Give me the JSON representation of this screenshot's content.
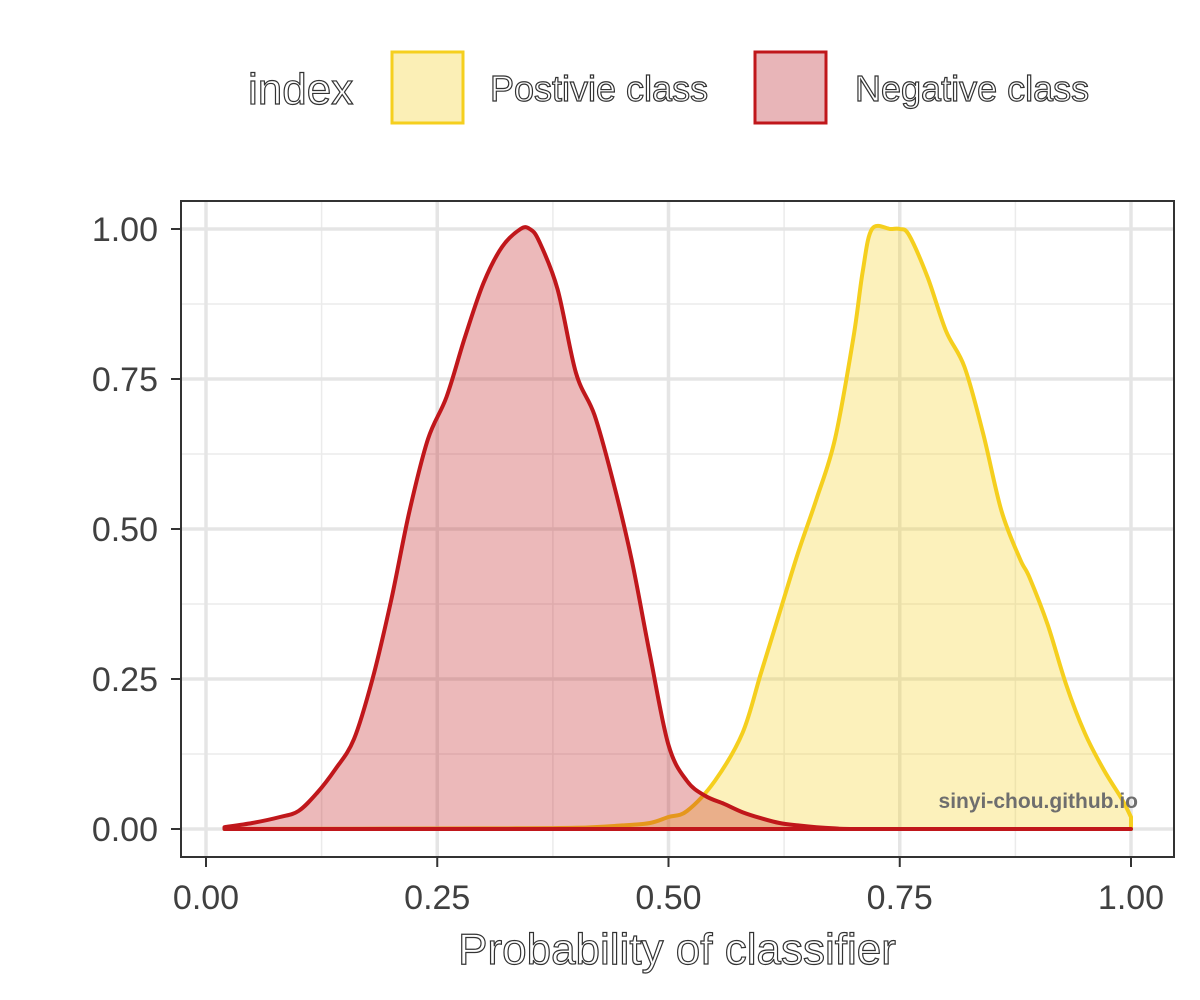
{
  "legend": {
    "title": "index",
    "items": [
      {
        "label": "Postivie class",
        "fill": "#fbefb6",
        "stroke": "#f5cf1e"
      },
      {
        "label": "Negative class",
        "fill": "#e8b5b8",
        "stroke": "#c0171b"
      }
    ]
  },
  "watermark": "sinyi-chou.github.io",
  "chart_data": {
    "type": "area",
    "xlabel": "Probability of classifier",
    "ylabel": "",
    "xlim": [
      0.0,
      1.0
    ],
    "ylim": [
      0.0,
      1.0
    ],
    "x_ticks": [
      "0.00",
      "0.25",
      "0.50",
      "0.75",
      "1.00"
    ],
    "y_ticks": [
      "0.00",
      "0.25",
      "0.50",
      "0.75",
      "1.00"
    ],
    "grid": true,
    "legend_position": "top",
    "series": [
      {
        "name": "Postivie class",
        "fill": "#fbefb6",
        "stroke": "#f5cf1e",
        "points": [
          [
            0.02,
            0.0
          ],
          [
            0.3,
            0.001
          ],
          [
            0.4,
            0.002
          ],
          [
            0.45,
            0.006
          ],
          [
            0.48,
            0.01
          ],
          [
            0.5,
            0.02
          ],
          [
            0.52,
            0.03
          ],
          [
            0.55,
            0.08
          ],
          [
            0.58,
            0.16
          ],
          [
            0.6,
            0.26
          ],
          [
            0.62,
            0.36
          ],
          [
            0.64,
            0.46
          ],
          [
            0.66,
            0.55
          ],
          [
            0.68,
            0.65
          ],
          [
            0.7,
            0.82
          ],
          [
            0.71,
            0.93
          ],
          [
            0.72,
            1.0
          ],
          [
            0.74,
            1.0
          ],
          [
            0.75,
            1.0
          ],
          [
            0.76,
            0.99
          ],
          [
            0.78,
            0.92
          ],
          [
            0.8,
            0.83
          ],
          [
            0.82,
            0.77
          ],
          [
            0.84,
            0.66
          ],
          [
            0.86,
            0.53
          ],
          [
            0.88,
            0.45
          ],
          [
            0.89,
            0.42
          ],
          [
            0.91,
            0.34
          ],
          [
            0.93,
            0.24
          ],
          [
            0.95,
            0.16
          ],
          [
            0.97,
            0.1
          ],
          [
            0.99,
            0.05
          ],
          [
            1.0,
            0.02
          ]
        ]
      },
      {
        "name": "Negative class",
        "fill": "#e8b5b8",
        "stroke": "#c0171b",
        "points": [
          [
            0.02,
            0.003
          ],
          [
            0.05,
            0.01
          ],
          [
            0.08,
            0.02
          ],
          [
            0.1,
            0.03
          ],
          [
            0.12,
            0.06
          ],
          [
            0.14,
            0.1
          ],
          [
            0.16,
            0.15
          ],
          [
            0.18,
            0.25
          ],
          [
            0.2,
            0.38
          ],
          [
            0.22,
            0.53
          ],
          [
            0.24,
            0.65
          ],
          [
            0.26,
            0.72
          ],
          [
            0.28,
            0.82
          ],
          [
            0.3,
            0.91
          ],
          [
            0.32,
            0.97
          ],
          [
            0.34,
            1.0
          ],
          [
            0.35,
            1.0
          ],
          [
            0.36,
            0.98
          ],
          [
            0.38,
            0.9
          ],
          [
            0.4,
            0.76
          ],
          [
            0.42,
            0.69
          ],
          [
            0.44,
            0.58
          ],
          [
            0.46,
            0.45
          ],
          [
            0.48,
            0.29
          ],
          [
            0.5,
            0.14
          ],
          [
            0.52,
            0.08
          ],
          [
            0.54,
            0.055
          ],
          [
            0.56,
            0.042
          ],
          [
            0.58,
            0.028
          ],
          [
            0.6,
            0.018
          ],
          [
            0.62,
            0.01
          ],
          [
            0.64,
            0.006
          ],
          [
            0.66,
            0.003
          ],
          [
            0.68,
            0.001
          ],
          [
            0.7,
            0.0
          ],
          [
            0.8,
            0.0
          ],
          [
            1.0,
            0.0
          ]
        ]
      }
    ]
  }
}
